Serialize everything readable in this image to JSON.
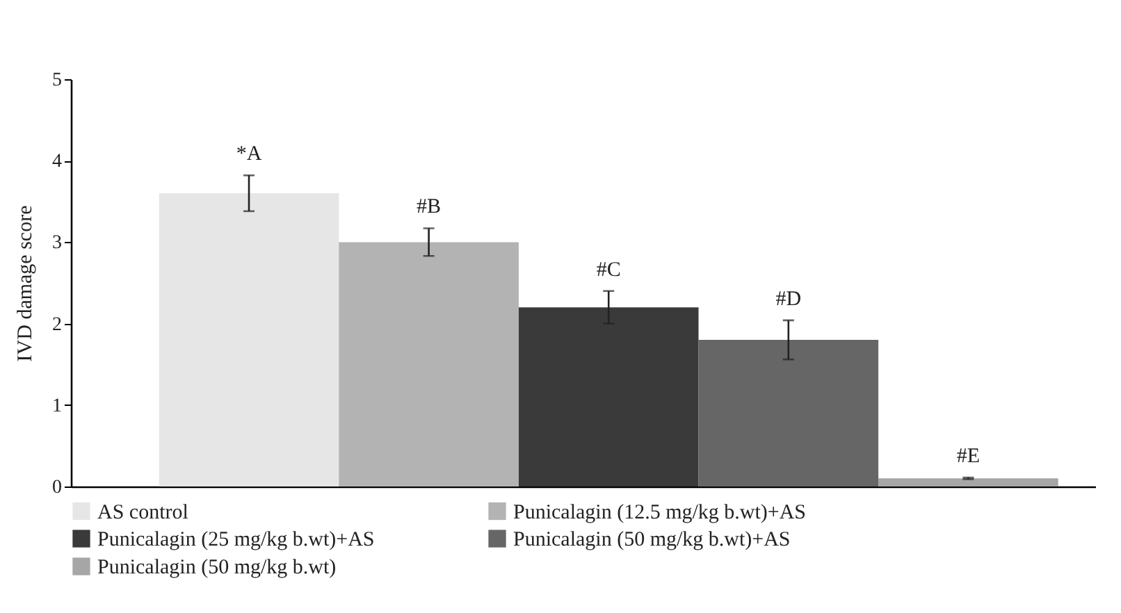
{
  "chart_data": {
    "type": "bar",
    "ylabel": "IVD damage score",
    "categories": [
      null,
      null,
      null,
      null,
      null
    ],
    "series": [
      {
        "name": "AS control",
        "color": "#e6e6e6",
        "values": [
          3.6,
          null,
          null,
          null,
          null
        ],
        "errors": [
          0.22,
          null,
          null,
          null,
          null
        ]
      },
      {
        "name": "Punicalagin (12.5 mg/kg b.wt)+AS",
        "color": "#b3b3b3",
        "values": [
          null,
          3.0,
          null,
          null,
          null
        ],
        "errors": [
          null,
          0.17,
          null,
          null,
          null
        ]
      },
      {
        "name": "Punicalagin (25 mg/kg b.wt)+AS",
        "color": "#3a3a3a",
        "values": [
          null,
          null,
          2.2,
          null,
          null
        ],
        "errors": [
          null,
          null,
          0.2,
          null,
          null
        ]
      },
      {
        "name": "Punicalagin (50 mg/kg b.wt)+AS",
        "color": "#666666",
        "values": [
          null,
          null,
          null,
          1.8,
          null
        ],
        "errors": [
          null,
          null,
          null,
          0.24,
          null
        ]
      },
      {
        "name": "Punicalagin (50 mg/kg b.wt)",
        "color": "#a6a6a6",
        "values": [
          null,
          null,
          null,
          null,
          0.1
        ],
        "errors": [
          null,
          null,
          null,
          null,
          0.01
        ]
      }
    ],
    "annotations": [
      "*A",
      "#B",
      "#C",
      "#D",
      "#E"
    ],
    "ylim": [
      0,
      5
    ],
    "yticks": [
      0,
      1,
      2,
      3,
      4,
      5
    ],
    "grid": false,
    "legend": "bottom"
  }
}
